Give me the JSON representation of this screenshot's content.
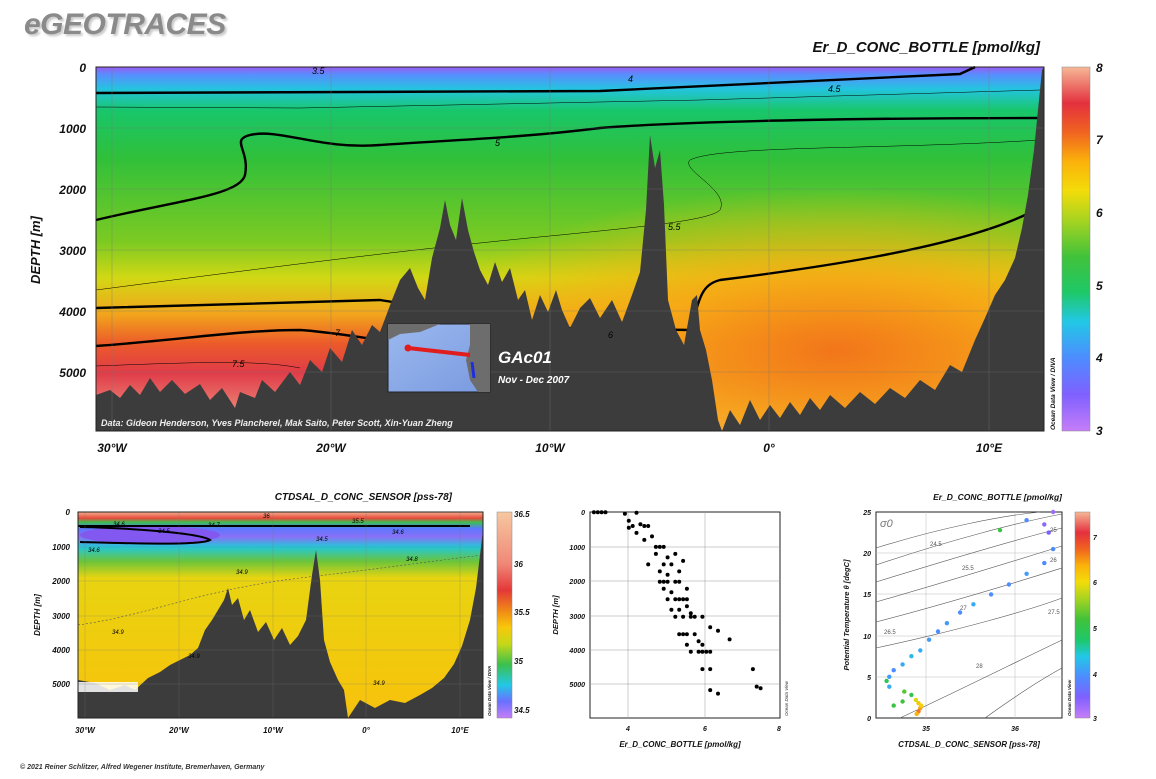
{
  "page": {
    "brand": "eGEOTRACES",
    "copyright": "© 2021 Reiner Schlitzer, Alfred Wegener Institute, Bremerhaven, Germany"
  },
  "inset": {
    "label": "GAc01",
    "dates": "Nov - Dec 2007"
  },
  "chart_data": [
    {
      "type": "heatmap",
      "title": "Er_D_CONC_BOTTLE [pmol/kg]",
      "ylabel": "DEPTH [m]",
      "xlabel": "",
      "xlim": [
        -31,
        12
      ],
      "ylim": [
        5900,
        0
      ],
      "x_ticks": [
        "30°W",
        "20°W",
        "10°W",
        "0°",
        "10°E"
      ],
      "y_ticks": [
        "0",
        "1000",
        "2000",
        "3000",
        "4000",
        "5000"
      ],
      "colorbar": {
        "min": 3,
        "max": 8,
        "ticks": [
          "3",
          "4",
          "5",
          "6",
          "7",
          "8"
        ],
        "label": "Ocean Data View / DIVA"
      },
      "contour_labels": [
        "3.5",
        "4",
        "4.5",
        "5",
        "5.5",
        "6",
        "7",
        "7.5"
      ],
      "credits": "Data: Gideon Henderson, Yves Plancherel, Mak Saito, Peter Scott, Xin-Yuan Zheng",
      "grid": true
    },
    {
      "type": "heatmap",
      "title": "CTDSAL_D_CONC_SENSOR [pss-78]",
      "ylabel": "DEPTH [m]",
      "xlim": [
        -31,
        12
      ],
      "ylim": [
        5900,
        0
      ],
      "x_ticks": [
        "30°W",
        "20°W",
        "10°W",
        "0°",
        "10°E"
      ],
      "y_ticks": [
        "0",
        "1000",
        "2000",
        "3000",
        "4000",
        "5000"
      ],
      "colorbar": {
        "min": 34.5,
        "max": 36.5,
        "ticks": [
          "34.5",
          "35",
          "35.5",
          "36",
          "36.5"
        ],
        "label": "Ocean Data View / DIVA"
      },
      "contour_labels": [
        "36",
        "35.5",
        "34.6",
        "34.7",
        "34.5",
        "34.6",
        "34.5",
        "34.8",
        "34.6",
        "34.9",
        "34.9",
        "34.9",
        "34.9"
      ],
      "grid": true
    },
    {
      "type": "scatter",
      "xlabel": "Er_D_CONC_BOTTLE [pmol/kg]",
      "ylabel": "DEPTH [m]",
      "xlim": [
        3.1,
        8
      ],
      "ylim": [
        5900,
        0
      ],
      "x_ticks": [
        "4",
        "6",
        "8"
      ],
      "y_ticks": [
        "0",
        "1000",
        "2000",
        "3000",
        "4000",
        "5000"
      ],
      "side_label": "Ocean Data View",
      "points": [
        {
          "x": 3.2,
          "y": 5
        },
        {
          "x": 3.3,
          "y": 5
        },
        {
          "x": 3.4,
          "y": 10
        },
        {
          "x": 3.5,
          "y": 5
        },
        {
          "x": 4.0,
          "y": 50
        },
        {
          "x": 4.3,
          "y": 20
        },
        {
          "x": 4.1,
          "y": 250
        },
        {
          "x": 4.2,
          "y": 400
        },
        {
          "x": 4.4,
          "y": 350
        },
        {
          "x": 4.5,
          "y": 400
        },
        {
          "x": 4.6,
          "y": 400
        },
        {
          "x": 4.1,
          "y": 450
        },
        {
          "x": 4.3,
          "y": 600
        },
        {
          "x": 4.5,
          "y": 800
        },
        {
          "x": 4.7,
          "y": 700
        },
        {
          "x": 4.8,
          "y": 1000
        },
        {
          "x": 4.9,
          "y": 1000
        },
        {
          "x": 5.0,
          "y": 1000
        },
        {
          "x": 4.8,
          "y": 1200
        },
        {
          "x": 5.1,
          "y": 1300
        },
        {
          "x": 5.3,
          "y": 1200
        },
        {
          "x": 4.6,
          "y": 1500
        },
        {
          "x": 5.0,
          "y": 1500
        },
        {
          "x": 5.2,
          "y": 1500
        },
        {
          "x": 5.5,
          "y": 1400
        },
        {
          "x": 4.9,
          "y": 1700
        },
        {
          "x": 5.1,
          "y": 1800
        },
        {
          "x": 5.4,
          "y": 1700
        },
        {
          "x": 4.9,
          "y": 2000
        },
        {
          "x": 5.0,
          "y": 2000
        },
        {
          "x": 5.1,
          "y": 2000
        },
        {
          "x": 5.3,
          "y": 2000
        },
        {
          "x": 5.4,
          "y": 2000
        },
        {
          "x": 5.0,
          "y": 2200
        },
        {
          "x": 5.2,
          "y": 2300
        },
        {
          "x": 5.6,
          "y": 2200
        },
        {
          "x": 5.1,
          "y": 2500
        },
        {
          "x": 5.3,
          "y": 2500
        },
        {
          "x": 5.4,
          "y": 2500
        },
        {
          "x": 5.5,
          "y": 2500
        },
        {
          "x": 5.6,
          "y": 2500
        },
        {
          "x": 5.2,
          "y": 2800
        },
        {
          "x": 5.4,
          "y": 2800
        },
        {
          "x": 5.6,
          "y": 2700
        },
        {
          "x": 5.7,
          "y": 2900
        },
        {
          "x": 5.3,
          "y": 3000
        },
        {
          "x": 5.5,
          "y": 3000
        },
        {
          "x": 5.7,
          "y": 3000
        },
        {
          "x": 5.8,
          "y": 3000
        },
        {
          "x": 6.0,
          "y": 3000
        },
        {
          "x": 5.4,
          "y": 3500
        },
        {
          "x": 5.5,
          "y": 3500
        },
        {
          "x": 5.6,
          "y": 3500
        },
        {
          "x": 5.8,
          "y": 3500
        },
        {
          "x": 6.2,
          "y": 3300
        },
        {
          "x": 6.4,
          "y": 3400
        },
        {
          "x": 5.9,
          "y": 3700
        },
        {
          "x": 5.6,
          "y": 3800
        },
        {
          "x": 6.0,
          "y": 3800
        },
        {
          "x": 6.7,
          "y": 3650
        },
        {
          "x": 5.7,
          "y": 4000
        },
        {
          "x": 5.9,
          "y": 4000
        },
        {
          "x": 6.0,
          "y": 4000
        },
        {
          "x": 6.1,
          "y": 4000
        },
        {
          "x": 6.2,
          "y": 4000
        },
        {
          "x": 6.0,
          "y": 4500
        },
        {
          "x": 6.2,
          "y": 4500
        },
        {
          "x": 7.3,
          "y": 4500
        },
        {
          "x": 6.2,
          "y": 5100
        },
        {
          "x": 6.4,
          "y": 5200
        },
        {
          "x": 7.4,
          "y": 5000
        },
        {
          "x": 7.5,
          "y": 5050
        }
      ],
      "grid": true
    },
    {
      "type": "scatter",
      "title": "Er_D_CONC_BOTTLE [pmol/kg]",
      "xlabel": "CTDSAL_D_CONC_SENSOR [pss-78]",
      "ylabel": "Potential Temperature θ [degC]",
      "xlim": [
        34.4,
        36.5
      ],
      "ylim": [
        0,
        25
      ],
      "x_ticks": [
        "35",
        "36"
      ],
      "y_ticks": [
        "0",
        "5",
        "10",
        "15",
        "20",
        "25"
      ],
      "colorbar": {
        "min": 3,
        "max": 7.5,
        "ticks": [
          "3",
          "4",
          "5",
          "6",
          "7"
        ],
        "label": "Ocean Data View"
      },
      "sigma_label": "σ0",
      "isopycnal_labels": [
        "24.5",
        "25",
        "25.5",
        "26",
        "26.5",
        "27",
        "27.5",
        "28"
      ],
      "points": [
        {
          "s": 34.55,
          "t": 5.0,
          "c": 4.1
        },
        {
          "s": 34.6,
          "t": 5.8,
          "c": 4.0
        },
        {
          "s": 34.7,
          "t": 6.5,
          "c": 4.2
        },
        {
          "s": 34.8,
          "t": 7.5,
          "c": 4.3
        },
        {
          "s": 34.9,
          "t": 8.2,
          "c": 4.2
        },
        {
          "s": 35.0,
          "t": 9.5,
          "c": 4.1
        },
        {
          "s": 35.1,
          "t": 10.5,
          "c": 4.0
        },
        {
          "s": 35.2,
          "t": 11.5,
          "c": 4.1
        },
        {
          "s": 35.35,
          "t": 12.8,
          "c": 4.0
        },
        {
          "s": 35.5,
          "t": 13.8,
          "c": 4.2
        },
        {
          "s": 35.7,
          "t": 15.0,
          "c": 4.0
        },
        {
          "s": 35.9,
          "t": 16.2,
          "c": 4.0
        },
        {
          "s": 36.1,
          "t": 17.5,
          "c": 4.1
        },
        {
          "s": 36.3,
          "t": 18.8,
          "c": 4.0
        },
        {
          "s": 36.4,
          "t": 20.5,
          "c": 4.0
        },
        {
          "s": 36.35,
          "t": 22.5,
          "c": 3.5
        },
        {
          "s": 36.3,
          "t": 23.5,
          "c": 3.4
        },
        {
          "s": 36.4,
          "t": 25.0,
          "c": 3.3
        },
        {
          "s": 35.8,
          "t": 22.8,
          "c": 5.2
        },
        {
          "s": 36.1,
          "t": 24.0,
          "c": 4.0
        },
        {
          "s": 34.52,
          "t": 4.5,
          "c": 5.0
        },
        {
          "s": 34.55,
          "t": 3.8,
          "c": 4.2
        },
        {
          "s": 34.6,
          "t": 1.5,
          "c": 5.2
        },
        {
          "s": 34.7,
          "t": 2.0,
          "c": 5.3
        },
        {
          "s": 34.72,
          "t": 3.2,
          "c": 5.4
        },
        {
          "s": 34.8,
          "t": 2.8,
          "c": 5.1
        },
        {
          "s": 34.85,
          "t": 2.2,
          "c": 6.0
        },
        {
          "s": 34.88,
          "t": 1.8,
          "c": 6.3
        },
        {
          "s": 34.9,
          "t": 1.2,
          "c": 6.6
        },
        {
          "s": 34.88,
          "t": 0.8,
          "c": 6.8
        },
        {
          "s": 34.86,
          "t": 0.5,
          "c": 6.5
        },
        {
          "s": 34.91,
          "t": 1.5,
          "c": 6.2
        }
      ],
      "grid": true
    }
  ]
}
